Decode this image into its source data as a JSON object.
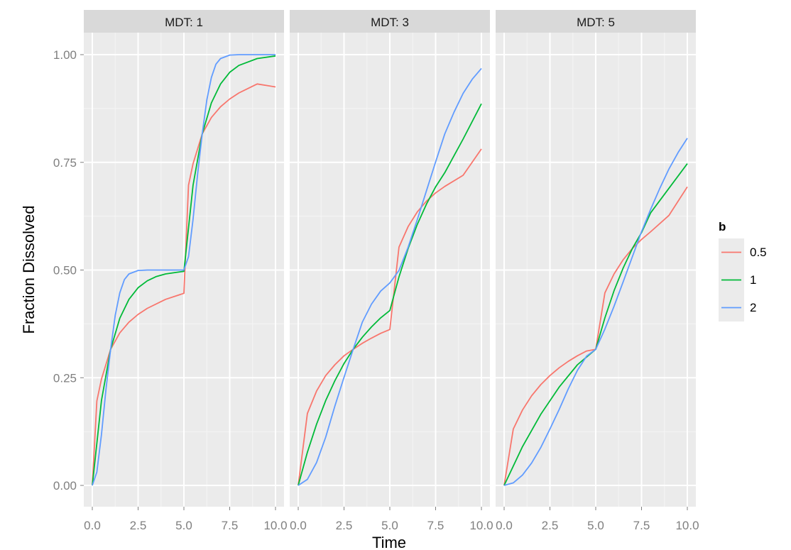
{
  "chart_data": {
    "type": "line",
    "facet_label_prefix": "MDT",
    "panels": [
      {
        "label": "MDT: 1",
        "mdt": 1
      },
      {
        "label": "MDT: 3",
        "mdt": 3
      },
      {
        "label": "MDT: 5",
        "mdt": 5
      }
    ],
    "xlabel": "Time",
    "ylabel": "Fraction Dissolved",
    "xlim": [
      0,
      10
    ],
    "ylim": [
      0,
      1
    ],
    "x_ticks": [
      "0.0",
      "2.5",
      "5.0",
      "7.5",
      "10.0"
    ],
    "y_ticks": [
      "0.00",
      "0.25",
      "0.50",
      "0.75",
      "1.00"
    ],
    "grid": true,
    "legend": {
      "title": "b",
      "placement": "right",
      "entries": [
        {
          "label": "0.5",
          "color": "#F8766D"
        },
        {
          "label": "1",
          "color": "#00BA38"
        },
        {
          "label": "2",
          "color": "#619CFF"
        }
      ]
    },
    "series": [
      {
        "b": "0.5",
        "color": "#F8766D",
        "panels": [
          {
            "x": [
              0,
              0.25,
              0.5,
              1,
              1.5,
              2,
              2.5,
              3,
              4,
              5,
              5.25,
              5.5,
              6,
              6.5,
              7,
              7.5,
              8,
              9,
              10
            ],
            "y": [
              0,
              0.196,
              0.247,
              0.316,
              0.354,
              0.379,
              0.397,
              0.411,
              0.432,
              0.446,
              0.697,
              0.747,
              0.816,
              0.854,
              0.879,
              0.897,
              0.911,
              0.932,
              0.925
            ]
          },
          {
            "x": [
              0,
              0.5,
              1,
              1.5,
              2,
              2.5,
              3,
              3.5,
              4,
              4.5,
              5,
              5.5,
              6,
              6.5,
              7,
              7.5,
              8,
              9,
              10
            ],
            "y": [
              0,
              0.167,
              0.219,
              0.255,
              0.28,
              0.301,
              0.316,
              0.33,
              0.342,
              0.353,
              0.362,
              0.553,
              0.601,
              0.635,
              0.66,
              0.679,
              0.694,
              0.72,
              0.781
            ]
          },
          {
            "x": [
              0,
              0.5,
              1,
              1.5,
              2,
              2.5,
              3,
              3.5,
              4,
              4.5,
              5,
              5.5,
              6,
              6.5,
              7,
              7.5,
              8,
              9,
              10
            ],
            "y": [
              0,
              0.131,
              0.175,
              0.208,
              0.234,
              0.255,
              0.273,
              0.288,
              0.301,
              0.312,
              0.316,
              0.447,
              0.491,
              0.524,
              0.55,
              0.571,
              0.589,
              0.627,
              0.693
            ]
          }
        ]
      },
      {
        "b": "1",
        "color": "#00BA38",
        "panels": [
          {
            "x": [
              0,
              0.5,
              1,
              1.5,
              2,
              2.5,
              3,
              3.5,
              4,
              4.5,
              5,
              5.5,
              6,
              6.5,
              7,
              7.5,
              8,
              9,
              10
            ],
            "y": [
              0,
              0.197,
              0.316,
              0.388,
              0.432,
              0.459,
              0.475,
              0.485,
              0.491,
              0.494,
              0.497,
              0.697,
              0.816,
              0.888,
              0.932,
              0.959,
              0.975,
              0.991,
              0.997
            ]
          },
          {
            "x": [
              0,
              0.5,
              1,
              1.5,
              2,
              2.5,
              3,
              3.5,
              4,
              4.5,
              5,
              5.5,
              6,
              6.5,
              7,
              7.5,
              8,
              9,
              10
            ],
            "y": [
              0,
              0.077,
              0.142,
              0.197,
              0.243,
              0.283,
              0.316,
              0.344,
              0.368,
              0.389,
              0.406,
              0.484,
              0.55,
              0.606,
              0.653,
              0.693,
              0.726,
              0.804,
              0.886
            ]
          },
          {
            "x": [
              0,
              1,
              2,
              3,
              4,
              5,
              5.5,
              6,
              6.5,
              7,
              7.5,
              8,
              9,
              10
            ],
            "y": [
              0,
              0.09,
              0.165,
              0.228,
              0.28,
              0.316,
              0.389,
              0.452,
              0.505,
              0.55,
              0.587,
              0.633,
              0.69,
              0.747
            ]
          }
        ]
      },
      {
        "b": "2",
        "color": "#619CFF",
        "panels": [
          {
            "x": [
              0,
              0.25,
              0.5,
              0.75,
              1,
              1.25,
              1.5,
              1.75,
              2,
              2.5,
              3,
              4,
              5,
              5.25,
              5.5,
              5.75,
              6,
              6.25,
              6.5,
              6.75,
              7,
              7.5,
              8,
              9,
              10
            ],
            "y": [
              0,
              0.031,
              0.118,
              0.224,
              0.316,
              0.395,
              0.447,
              0.478,
              0.491,
              0.499,
              0.5,
              0.5,
              0.5,
              0.531,
              0.618,
              0.724,
              0.816,
              0.895,
              0.947,
              0.978,
              0.991,
              0.999,
              1.0,
              1.0,
              1.0
            ]
          },
          {
            "x": [
              0,
              0.5,
              1,
              1.5,
              2,
              2.5,
              3,
              3.5,
              4,
              4.5,
              5,
              5.5,
              6,
              6.5,
              7,
              7.5,
              8,
              8.5,
              9,
              9.5,
              10
            ],
            "y": [
              0,
              0.014,
              0.053,
              0.112,
              0.184,
              0.251,
              0.316,
              0.379,
              0.421,
              0.451,
              0.47,
              0.499,
              0.553,
              0.617,
              0.684,
              0.751,
              0.816,
              0.866,
              0.91,
              0.943,
              0.968
            ]
          },
          {
            "x": [
              0,
              0.5,
              1,
              1.5,
              2,
              2.5,
              3,
              3.5,
              4,
              4.5,
              5,
              5.5,
              6,
              6.5,
              7,
              7.5,
              8,
              8.5,
              9,
              9.5,
              10
            ],
            "y": [
              0,
              0.006,
              0.024,
              0.052,
              0.088,
              0.131,
              0.176,
              0.224,
              0.267,
              0.3,
              0.316,
              0.363,
              0.416,
              0.473,
              0.531,
              0.589,
              0.641,
              0.69,
              0.735,
              0.773,
              0.806
            ]
          }
        ]
      }
    ]
  }
}
